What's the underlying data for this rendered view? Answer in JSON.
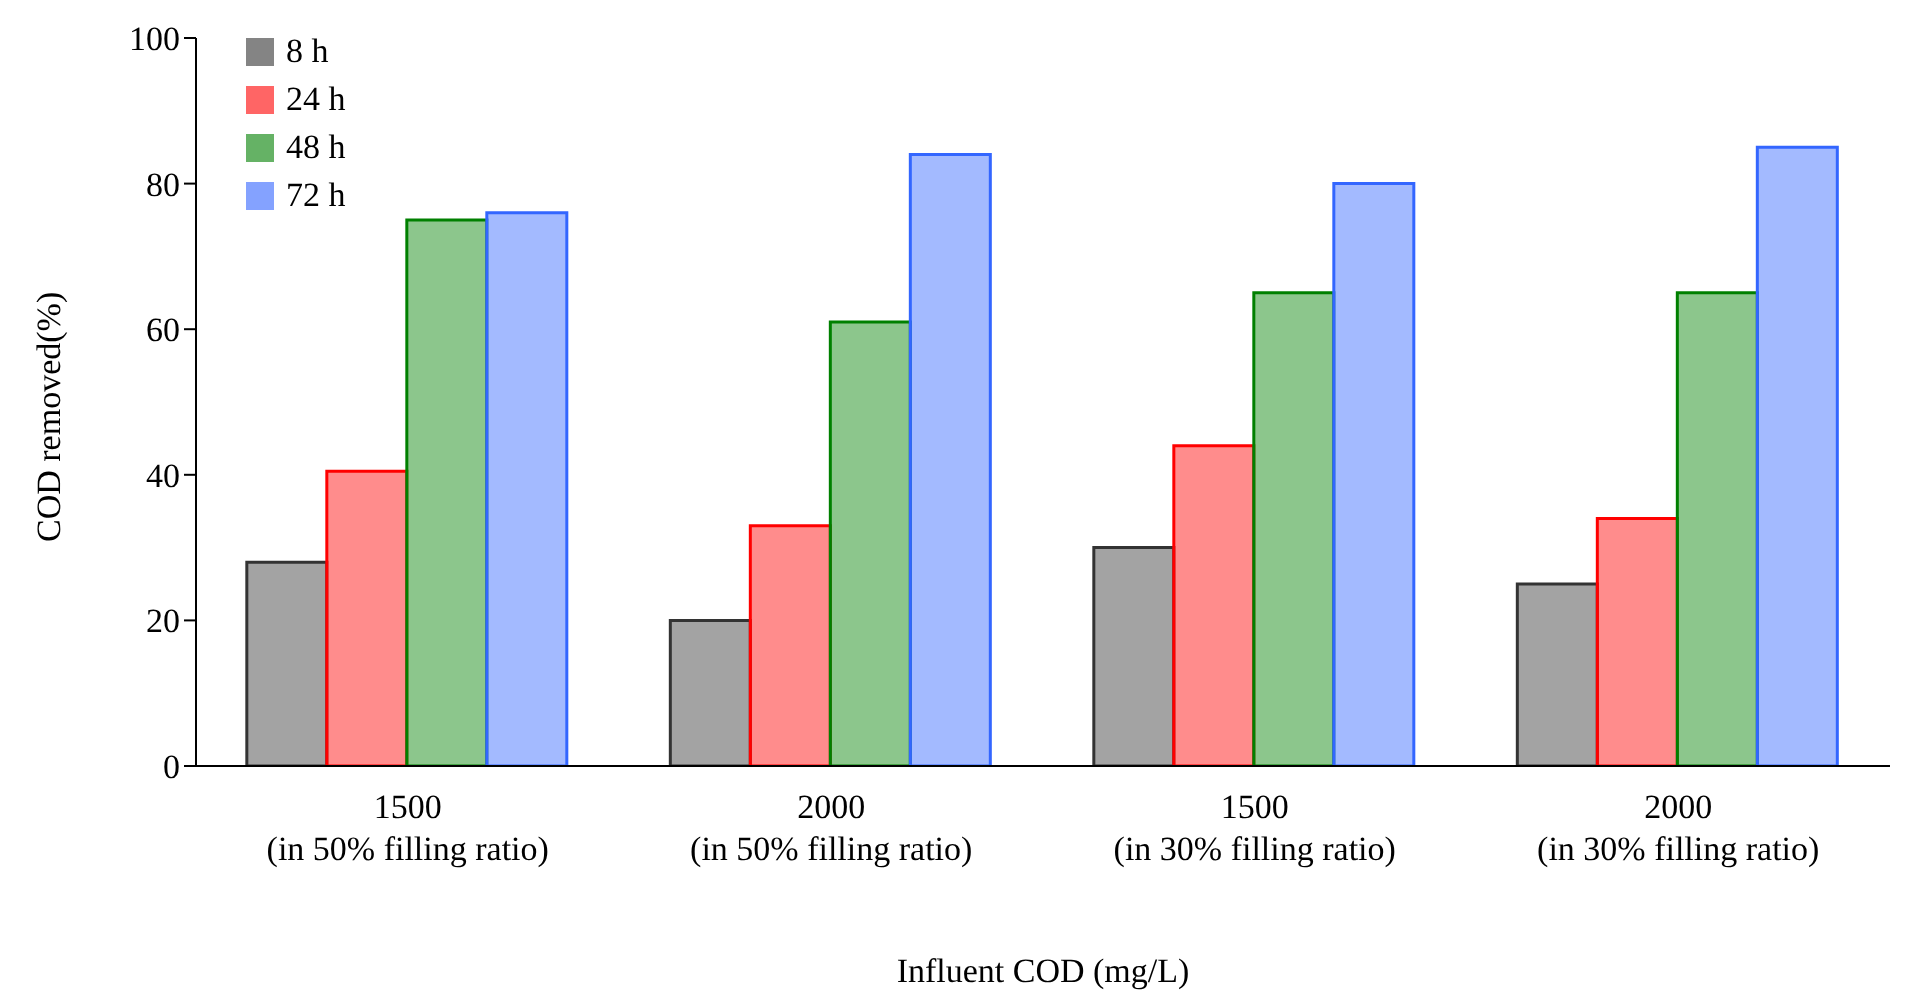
{
  "chart_data": {
    "type": "bar",
    "xlabel": "Influent COD (mg/L)",
    "ylabel": "COD removed(%)",
    "categories": [
      "1500\n(in 50% filling ratio)",
      "2000\n(in 50% filling ratio)",
      "1500\n(in 30% filling ratio)",
      "2000\n(in 30% filling ratio)"
    ],
    "series": [
      {
        "name": "8 h",
        "color": "#333333",
        "values": [
          28,
          20,
          30,
          25
        ]
      },
      {
        "name": "24 h",
        "color": "#ff0000",
        "values": [
          40.5,
          33,
          44,
          34
        ]
      },
      {
        "name": "48 h",
        "color": "#008000",
        "values": [
          75,
          61,
          65,
          65
        ]
      },
      {
        "name": "72 h",
        "color": "#3366ff",
        "values": [
          76,
          84,
          80,
          85
        ]
      }
    ],
    "ylim": [
      0,
      100
    ],
    "yticks": [
      0,
      20,
      40,
      60,
      80,
      100
    ],
    "grid": false,
    "legend": "top left"
  }
}
